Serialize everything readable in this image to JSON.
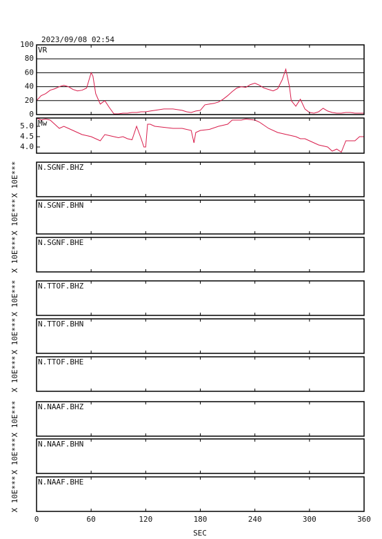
{
  "chart_data": [
    {
      "type": "line",
      "title": "2023/09/08  02:54",
      "label": "VR",
      "color": "#d81b4a",
      "grid": true,
      "x": [
        0,
        5,
        10,
        15,
        20,
        25,
        30,
        35,
        40,
        45,
        50,
        55,
        60,
        62,
        65,
        70,
        75,
        80,
        85,
        90,
        95,
        100,
        105,
        110,
        115,
        120,
        125,
        130,
        135,
        140,
        145,
        150,
        155,
        160,
        165,
        170,
        175,
        180,
        185,
        190,
        195,
        200,
        205,
        210,
        215,
        220,
        225,
        230,
        235,
        240,
        245,
        250,
        255,
        260,
        265,
        270,
        274,
        278,
        280,
        285,
        290,
        295,
        300,
        305,
        310,
        315,
        320,
        325,
        330,
        335,
        340,
        345,
        350,
        355,
        360
      ],
      "values": [
        20,
        27,
        30,
        35,
        37,
        40,
        42,
        40,
        36,
        34,
        35,
        38,
        60,
        55,
        30,
        15,
        20,
        10,
        1,
        1,
        2,
        2,
        3,
        3,
        4,
        4,
        5,
        6,
        7,
        8,
        8,
        8,
        7,
        6,
        4,
        3,
        5,
        6,
        14,
        15,
        16,
        18,
        22,
        27,
        33,
        38,
        40,
        39,
        43,
        45,
        42,
        38,
        36,
        34,
        37,
        50,
        65,
        40,
        20,
        12,
        22,
        8,
        3,
        2,
        4,
        9,
        5,
        3,
        2,
        2,
        3,
        3,
        2,
        2,
        2
      ],
      "ylim": [
        0,
        100
      ],
      "yticks": [
        0,
        20,
        40,
        60,
        80,
        100
      ]
    },
    {
      "type": "line",
      "label": "Mw",
      "color": "#d81b4a",
      "x": [
        0,
        5,
        10,
        15,
        20,
        25,
        30,
        35,
        40,
        45,
        50,
        55,
        60,
        65,
        70,
        75,
        80,
        85,
        90,
        95,
        100,
        105,
        110,
        115,
        118,
        120,
        122,
        125,
        130,
        140,
        150,
        160,
        170,
        173,
        175,
        180,
        190,
        200,
        210,
        215,
        225,
        230,
        240,
        245,
        255,
        265,
        275,
        285,
        290,
        295,
        300,
        305,
        310,
        320,
        325,
        330,
        335,
        340,
        345,
        350,
        355,
        360
      ],
      "values": [
        5.4,
        5.3,
        5.35,
        5.3,
        5.1,
        4.9,
        5.0,
        4.9,
        4.8,
        4.7,
        4.6,
        4.55,
        4.5,
        4.4,
        4.3,
        4.6,
        4.55,
        4.5,
        4.45,
        4.5,
        4.4,
        4.35,
        5.0,
        4.4,
        4.0,
        4.0,
        5.1,
        5.1,
        5.0,
        4.95,
        4.9,
        4.9,
        4.8,
        4.2,
        4.7,
        4.8,
        4.85,
        5.0,
        5.1,
        5.3,
        5.3,
        5.35,
        5.3,
        5.2,
        4.9,
        4.7,
        4.6,
        4.5,
        4.4,
        4.4,
        4.3,
        4.2,
        4.1,
        4.0,
        3.8,
        3.9,
        3.75,
        4.3,
        4.3,
        4.3,
        4.5,
        4.5
      ],
      "ylim": [
        3.7,
        5.4
      ],
      "yticks": [
        {
          "value": 4,
          "label": "4.0"
        },
        4.5,
        {
          "value": 5,
          "label": "5.0"
        }
      ]
    },
    {
      "type": "line",
      "label": "N.SGNF.BHZ",
      "ylabel": "X 10E***"
    },
    {
      "type": "line",
      "label": "N.SGNF.BHN",
      "ylabel": "X 10E***"
    },
    {
      "type": "line",
      "label": "N.SGNF.BHE",
      "ylabel": "X 10E***"
    },
    {
      "type": "line",
      "label": "N.TTOF.BHZ",
      "ylabel": "X 10E***"
    },
    {
      "type": "line",
      "label": "N.TTOF.BHN",
      "ylabel": "X 10E***"
    },
    {
      "type": "line",
      "label": "N.TTOF.BHE",
      "ylabel": "X 10E***"
    },
    {
      "type": "line",
      "label": "N.NAAF.BHZ",
      "ylabel": "X 10E***"
    },
    {
      "type": "line",
      "label": "N.NAAF.BHN",
      "ylabel": "X 10E***"
    },
    {
      "type": "line",
      "label": "N.NAAF.BHE",
      "ylabel": "X 10E***",
      "xlim": [
        0,
        360
      ],
      "xticks": [
        0,
        60,
        120,
        180,
        240,
        300,
        360
      ],
      "xlabel": "SEC"
    }
  ]
}
